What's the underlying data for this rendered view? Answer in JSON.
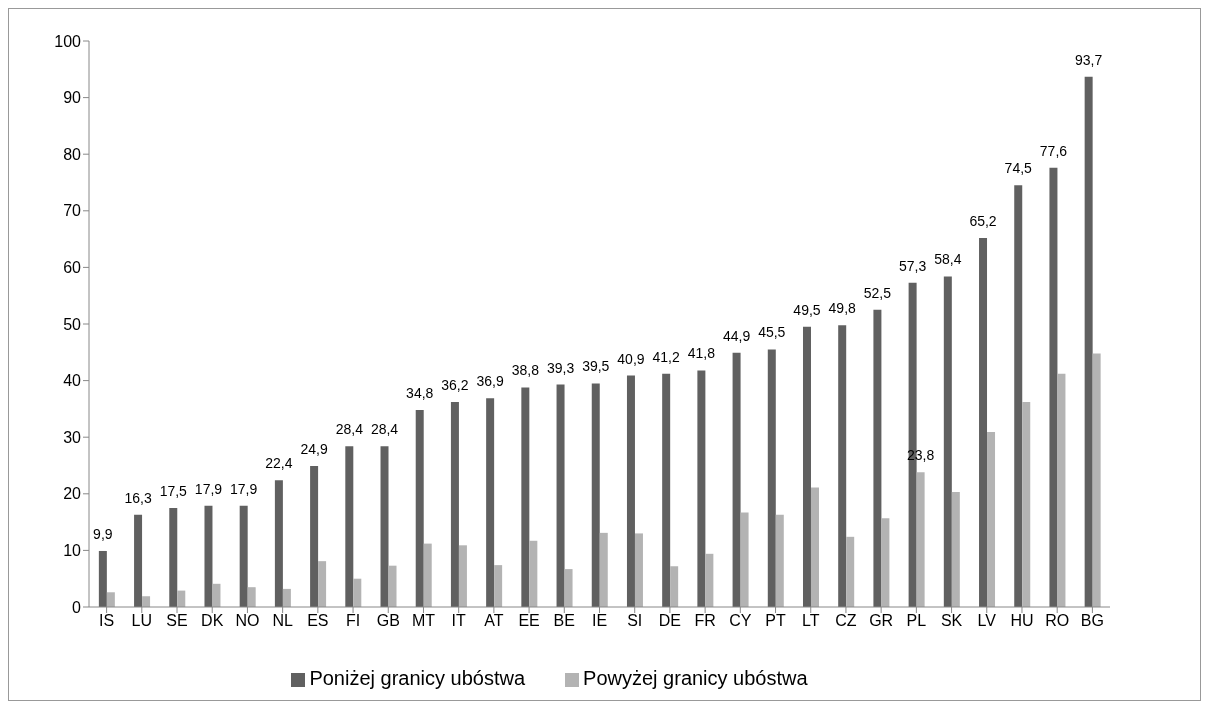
{
  "chart_data": {
    "type": "bar",
    "categories": [
      "IS",
      "LU",
      "SE",
      "DK",
      "NO",
      "NL",
      "ES",
      "FI",
      "GB",
      "MT",
      "IT",
      "AT",
      "EE",
      "BE",
      "IE",
      "SI",
      "DE",
      "FR",
      "CY",
      "PT",
      "LT",
      "CZ",
      "GR",
      "PL",
      "SK",
      "LV",
      "HU",
      "RO",
      "BG"
    ],
    "series": [
      {
        "name": "Poniżej granicy ubóstwa",
        "color": "#606060",
        "values": [
          9.9,
          16.3,
          17.5,
          17.9,
          17.9,
          22.4,
          24.9,
          28.4,
          28.4,
          34.8,
          36.2,
          36.9,
          38.8,
          39.3,
          39.5,
          40.9,
          41.2,
          41.8,
          44.9,
          45.5,
          49.5,
          49.8,
          52.5,
          57.3,
          58.4,
          65.2,
          74.5,
          77.6,
          93.7
        ],
        "value_labels": [
          "9,9",
          "16,3",
          "17,5",
          "17,9",
          "17,9",
          "22,4",
          "24,9",
          "28,4",
          "28,4",
          "34,8",
          "36,2",
          "36,9",
          "38,8",
          "39,3",
          "39,5",
          "40,9",
          "41,2",
          "41,8",
          "44,9",
          "45,5",
          "49,5",
          "49,8",
          "52,5",
          "57,3",
          "58,4",
          "65,2",
          "74,5",
          "77,6",
          "93,7"
        ]
      },
      {
        "name": "Powyżej granicy ubóstwa",
        "color": "#b3b3b3",
        "values": [
          2.6,
          1.9,
          2.9,
          4.1,
          3.5,
          3.2,
          8.1,
          5.0,
          7.3,
          11.2,
          10.9,
          7.4,
          11.7,
          6.7,
          13.1,
          13.0,
          7.2,
          9.4,
          16.7,
          16.3,
          21.1,
          12.4,
          15.7,
          23.8,
          20.3,
          30.9,
          36.2,
          41.2,
          44.8
        ],
        "value_labels": [
          null,
          null,
          null,
          null,
          null,
          null,
          null,
          null,
          null,
          null,
          null,
          null,
          null,
          null,
          null,
          null,
          null,
          null,
          null,
          null,
          null,
          null,
          null,
          "23,8",
          null,
          null,
          null,
          null,
          null
        ]
      }
    ],
    "ylim": [
      0,
      100
    ],
    "yticks": [
      0,
      10,
      20,
      30,
      40,
      50,
      60,
      70,
      80,
      90,
      100
    ],
    "grid": false,
    "legend": "bottom"
  }
}
